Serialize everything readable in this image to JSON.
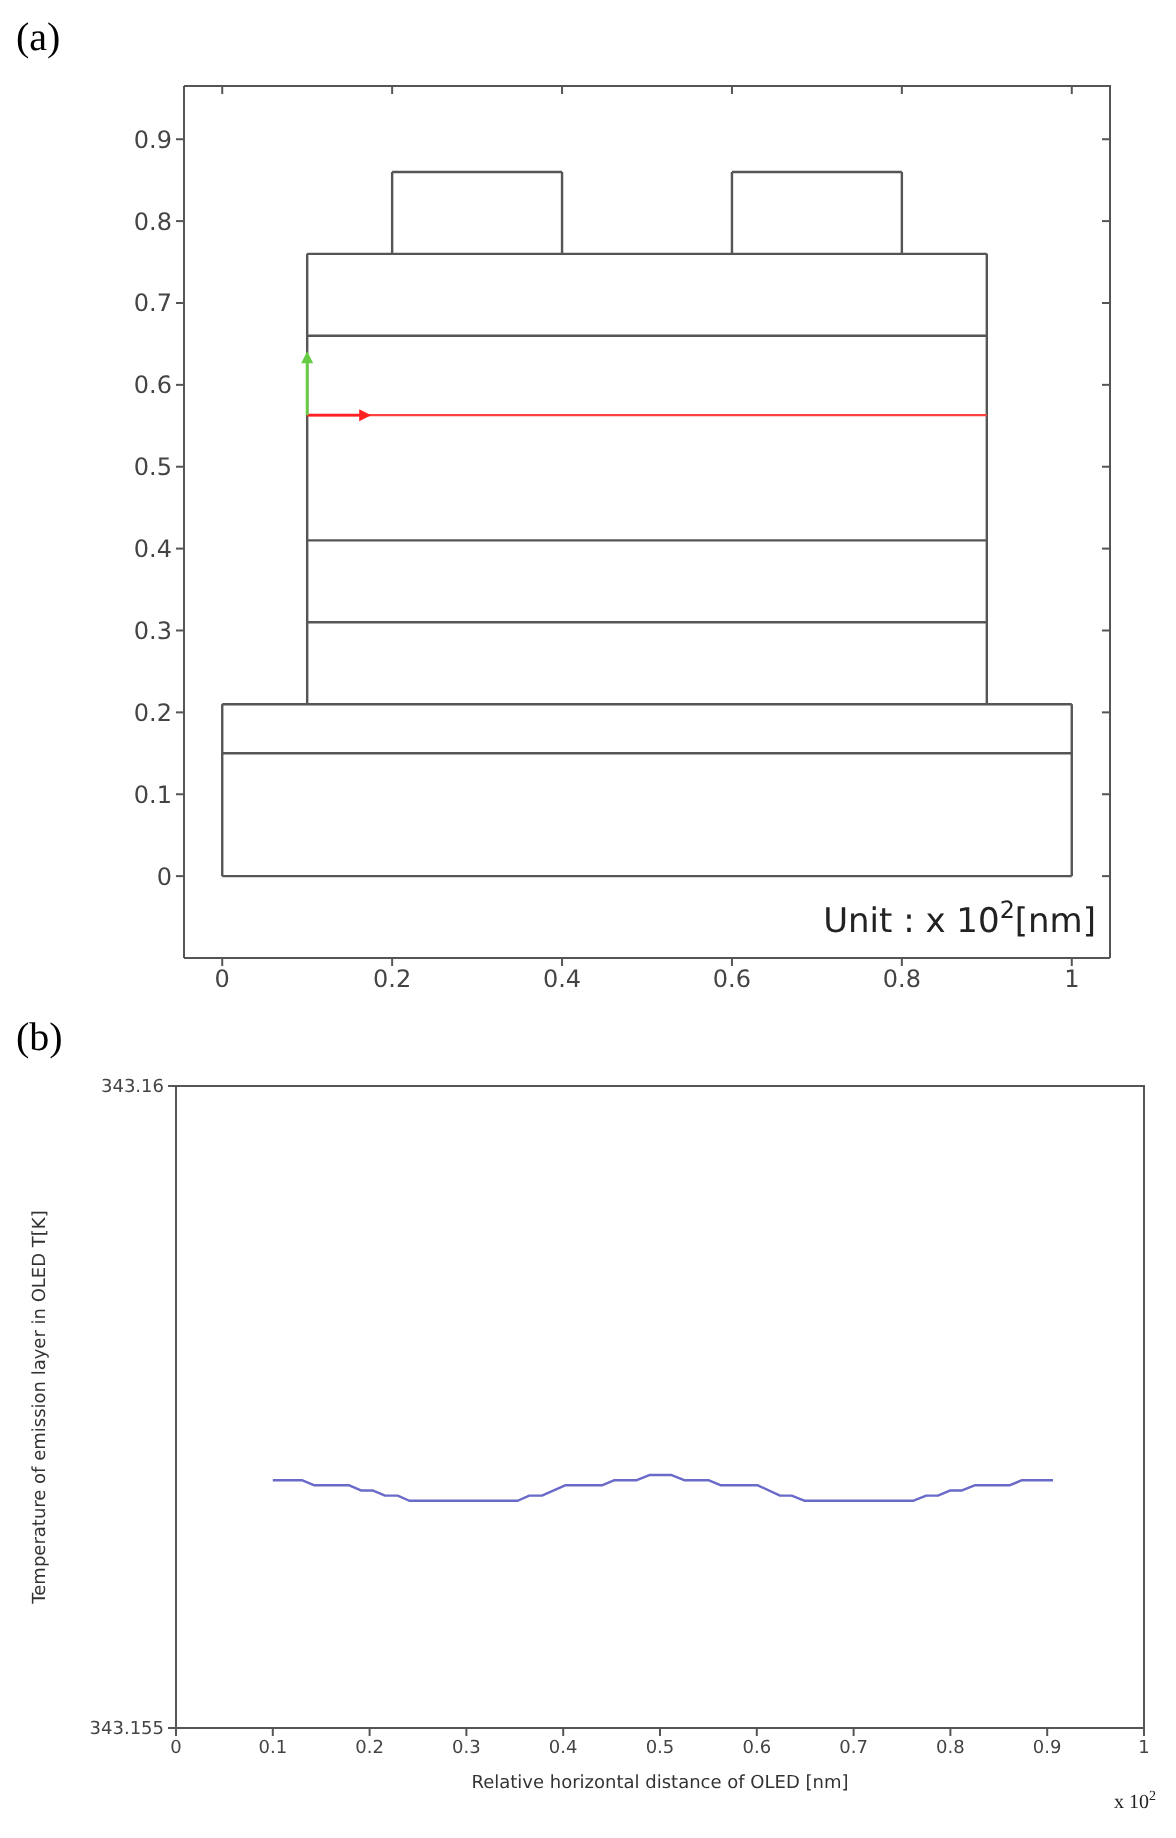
{
  "chart_data": [
    {
      "type": "line",
      "title": "(a)",
      "annotations": [
        "Unit :  x 10$^{2}$[nm]"
      ],
      "xlim": [
        -0.045,
        1.045
      ],
      "ylim": [
        -0.1,
        0.965
      ],
      "xticks": [
        0,
        0.2,
        0.4,
        0.6,
        0.8,
        1
      ],
      "yticks": [
        0,
        0.1,
        0.2,
        0.3,
        0.4,
        0.5,
        0.6,
        0.7,
        0.8,
        0.9
      ],
      "line_style": "solid",
      "series": [
        {
          "color": "#555555",
          "x": [
            0,
            1
          ],
          "values": [
            0,
            0
          ]
        },
        {
          "color": "#555555",
          "x": [
            0,
            1
          ],
          "values": [
            0.15,
            0.15
          ]
        },
        {
          "color": "#555555",
          "x": [
            0,
            1
          ],
          "values": [
            0.21,
            0.21
          ]
        },
        {
          "color": "#555555",
          "x": [
            0.1,
            0.9
          ],
          "values": [
            0.31,
            0.31
          ]
        },
        {
          "color": "#555555",
          "x": [
            0.1,
            0.9
          ],
          "values": [
            0.41,
            0.41
          ]
        },
        {
          "color": "#555555",
          "x": [
            0.1,
            0.9
          ],
          "values": [
            0.66,
            0.66
          ]
        },
        {
          "color": "#555555",
          "x": [
            0.1,
            0.9
          ],
          "values": [
            0.76,
            0.76
          ]
        },
        {
          "color": "#555555",
          "x": [
            0.2,
            0.4
          ],
          "values": [
            0.86,
            0.86
          ]
        },
        {
          "color": "#555555",
          "x": [
            0.6,
            0.8
          ],
          "values": [
            0.86,
            0.86
          ]
        },
        {
          "color": "#555555",
          "x": [
            0,
            0
          ],
          "values": [
            0,
            0.21
          ]
        },
        {
          "color": "#555555",
          "x": [
            1,
            1
          ],
          "values": [
            0,
            0.21
          ]
        },
        {
          "color": "#555555",
          "x": [
            0.1,
            0.1
          ],
          "values": [
            0.21,
            0.76
          ]
        },
        {
          "color": "#555555",
          "x": [
            0.9,
            0.9
          ],
          "values": [
            0.21,
            0.76
          ]
        },
        {
          "color": "#555555",
          "x": [
            0.2,
            0.2
          ],
          "values": [
            0.76,
            0.86
          ]
        },
        {
          "color": "#555555",
          "x": [
            0.4,
            0.4
          ],
          "values": [
            0.76,
            0.86
          ]
        },
        {
          "color": "#555555",
          "x": [
            0.6,
            0.6
          ],
          "values": [
            0.76,
            0.86
          ]
        },
        {
          "color": "#555555",
          "x": [
            0.8,
            0.8
          ],
          "values": [
            0.76,
            0.86
          ]
        },
        {
          "color": "#ff4040",
          "x": [
            0.1,
            0.9
          ],
          "values": [
            0.563,
            0.563
          ]
        }
      ]
    },
    {
      "type": "line",
      "title": "(b)",
      "xlabel": "Relative horizontal distance of OLED [nm]",
      "ylabel": "Temperature of emission layer in OLED T[K]",
      "annotations": [
        "x 10$^{2}$"
      ],
      "xlim": [
        0,
        1
      ],
      "ylim": [
        343.155,
        343.16
      ],
      "xticks": [
        0,
        0.1,
        0.2,
        0.3,
        0.4,
        0.5,
        0.6,
        0.7,
        0.8,
        0.9,
        1
      ],
      "yticks": [
        343.155,
        343.16
      ],
      "line_style": "solid",
      "series": [
        {
          "color": "#6a6ac8",
          "x": [
            0.1,
            0.13,
            0.143,
            0.179,
            0.191,
            0.203,
            0.216,
            0.229,
            0.241,
            0.353,
            0.365,
            0.378,
            0.402,
            0.44,
            0.453,
            0.476,
            0.489,
            0.512,
            0.525,
            0.55,
            0.563,
            0.601,
            0.624,
            0.636,
            0.649,
            0.762,
            0.775,
            0.787,
            0.8,
            0.812,
            0.825,
            0.861,
            0.874,
            0.906
          ],
          "values": [
            343.15693,
            343.15693,
            343.15689,
            343.15689,
            343.15685,
            343.15685,
            343.15681,
            343.15681,
            343.15677,
            343.15677,
            343.15681,
            343.15681,
            343.15689,
            343.15689,
            343.15693,
            343.15693,
            343.15697,
            343.15697,
            343.15693,
            343.15693,
            343.15689,
            343.15689,
            343.15681,
            343.15681,
            343.15677,
            343.15677,
            343.15681,
            343.15681,
            343.15685,
            343.15685,
            343.15689,
            343.15689,
            343.15693,
            343.15693
          ]
        }
      ]
    }
  ]
}
